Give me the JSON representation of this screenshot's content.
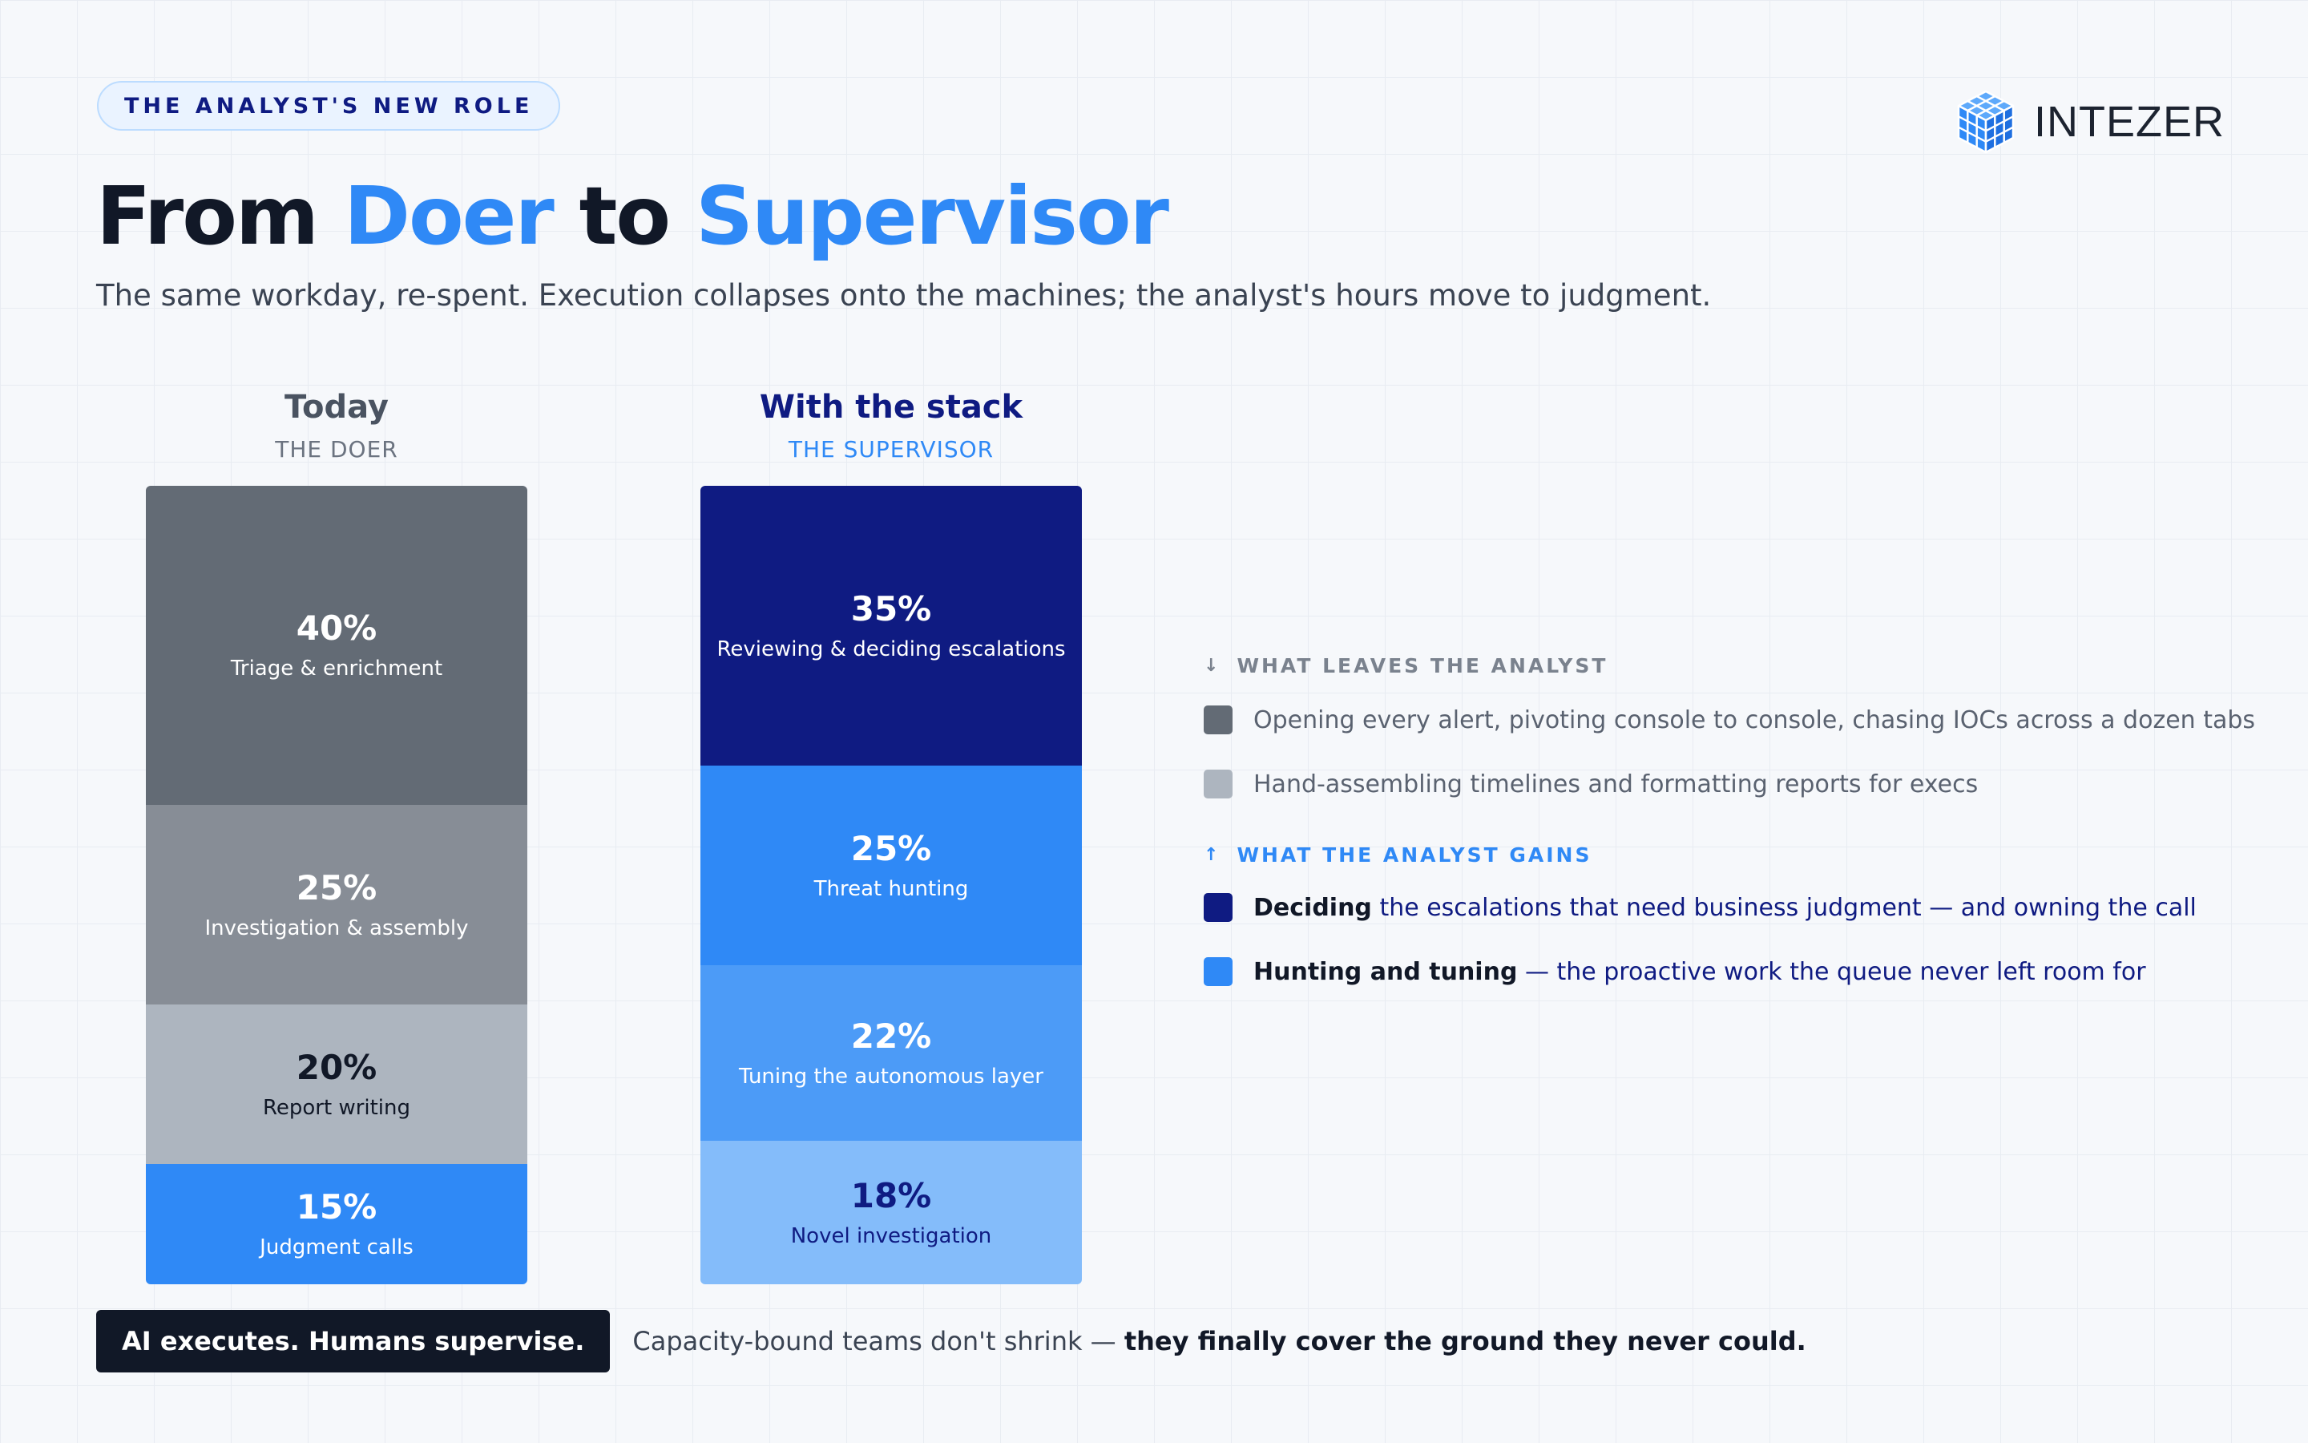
{
  "kicker": "THE ANALYST'S NEW ROLE",
  "logo_text": "INTEZER",
  "title": {
    "part1": "From ",
    "hl1": "Doer",
    "part2": " to ",
    "hl2": "Supervisor"
  },
  "subtitle": "The same workday, re-spent. Execution collapses onto the machines; the analyst's hours move to judgment.",
  "chart_data": {
    "type": "bar",
    "stacked": true,
    "categories": [
      "Today",
      "With the stack"
    ],
    "category_subtitles": [
      "THE DOER",
      "THE SUPERVISOR"
    ],
    "unit": "%",
    "series": [
      {
        "category": "Today",
        "segments": [
          {
            "label": "Triage & enrichment",
            "value": 40,
            "color": "#636b75"
          },
          {
            "label": "Investigation & assembly",
            "value": 25,
            "color": "#878d96"
          },
          {
            "label": "Report writing",
            "value": 20,
            "color": "#adb5bf"
          },
          {
            "label": "Judgment calls",
            "value": 15,
            "color": "#2f89f6"
          }
        ]
      },
      {
        "category": "With the stack",
        "segments": [
          {
            "label": "Reviewing & deciding escalations",
            "value": 35,
            "color": "#0f1b82"
          },
          {
            "label": "Threat hunting",
            "value": 25,
            "color": "#2f89f6"
          },
          {
            "label": "Tuning the autonomous layer",
            "value": 22,
            "color": "#4c9bf7"
          },
          {
            "label": "Novel investigation",
            "value": 18,
            "color": "#84bcfa"
          }
        ]
      }
    ]
  },
  "legend": {
    "leaves": {
      "arrow": "↓",
      "heading": "WHAT LEAVES THE ANALYST",
      "items": [
        {
          "text": "Opening every alert, pivoting console to console, chasing IOCs across a dozen tabs",
          "color": "#636b75"
        },
        {
          "text": "Hand-assembling timelines and formatting reports for execs",
          "color": "#adb5bf"
        }
      ]
    },
    "gains": {
      "arrow": "↑",
      "heading": "WHAT THE ANALYST GAINS",
      "items": [
        {
          "bold": "Deciding",
          "text": " the escalations that need business judgment — and owning the call",
          "color": "#0f1b82"
        },
        {
          "bold": "Hunting and tuning",
          "text": " — the proactive work the queue never left room for",
          "color": "#2f89f6"
        }
      ]
    }
  },
  "footer": {
    "badge": "AI executes. Humans supervise.",
    "text": "Capacity-bound teams don't shrink — ",
    "bold": "they finally cover the ground they never could."
  },
  "colors": {
    "accent": "#2f89f6",
    "navy": "#0f1b82",
    "dark": "#111827"
  },
  "icons": {
    "logo": "cube-grid-icon"
  }
}
